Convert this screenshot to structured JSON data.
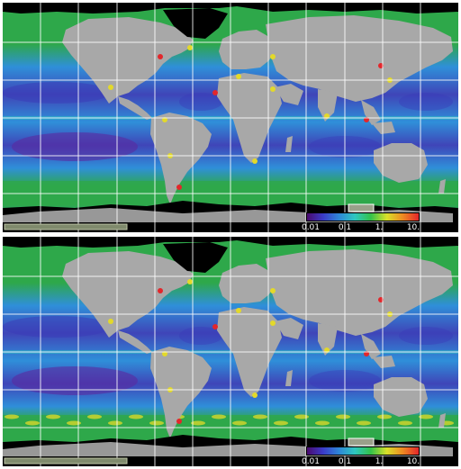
{
  "maps": [
    {
      "colorbar": {
        "ticks": [
          "0.01",
          "0.1",
          "1.",
          "10."
        ],
        "colors": [
          "#4a0a6e",
          "#3b3bc8",
          "#2e86d8",
          "#2fc7c0",
          "#33c24a",
          "#d9e02a",
          "#ee8a22",
          "#e3262b"
        ]
      }
    },
    {
      "colorbar": {
        "ticks": [
          "0.01",
          "0.1",
          "1.",
          "10."
        ],
        "colors": [
          "#4a0a6e",
          "#3b3bc8",
          "#2e86d8",
          "#2fc7c0",
          "#33c24a",
          "#d9e02a",
          "#ee8a22",
          "#e3262b"
        ]
      }
    }
  ],
  "palette": {
    "land": "#a8a8a8",
    "ice": "#000000",
    "gridline": "#ffffff",
    "ocean_low": "#3f45b8",
    "ocean_mid": "#2f8fd9",
    "ocean_high": "#2ea84a",
    "bloom": "#e3d92a"
  },
  "symbols": {
    "colorbar_icon": "colorbar-legend",
    "grid_icon": "lat-lon-grid"
  }
}
